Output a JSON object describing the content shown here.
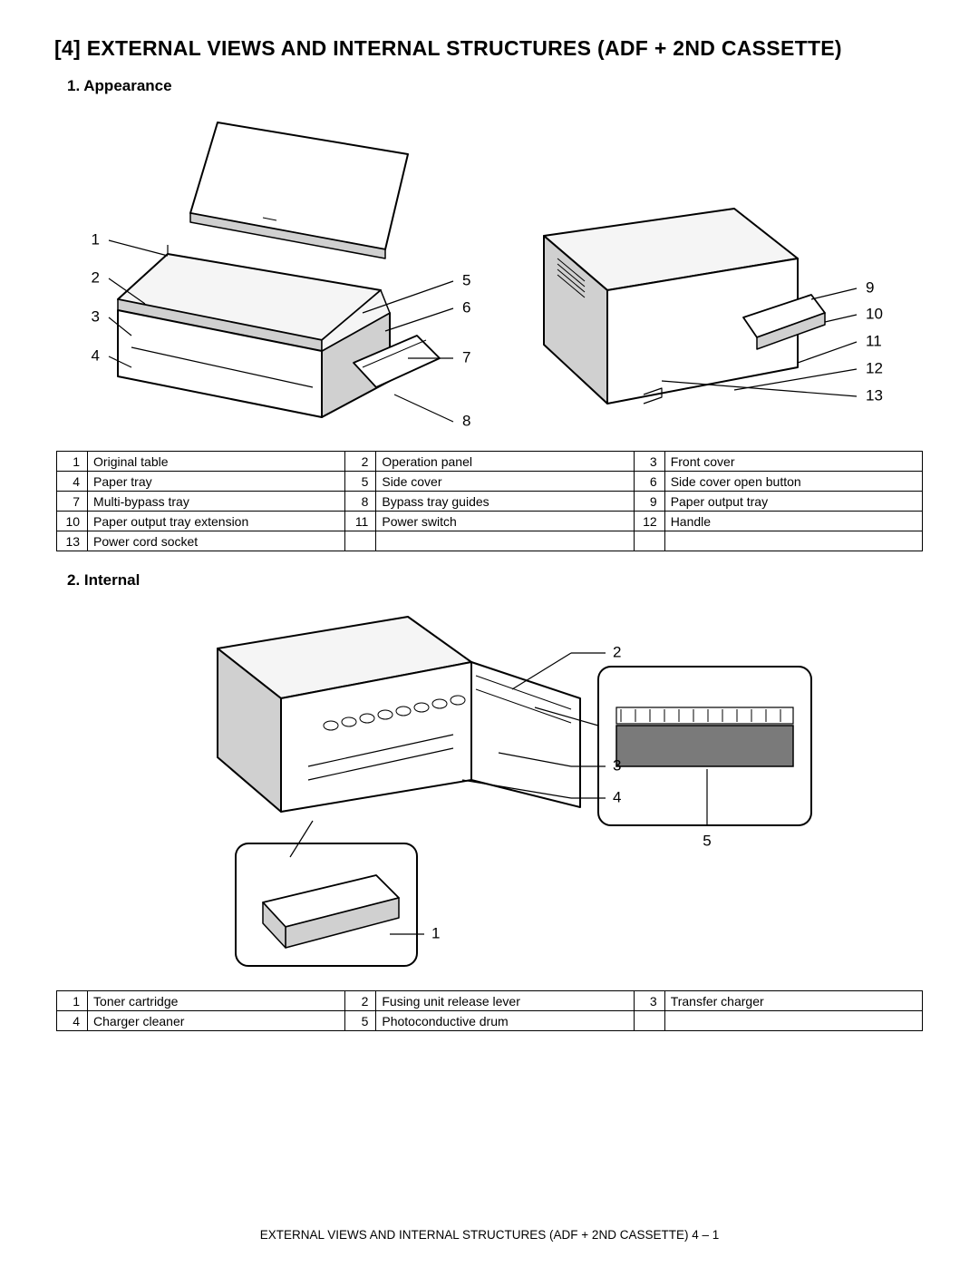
{
  "page": {
    "title": "[4]  EXTERNAL VIEWS AND INTERNAL STRUCTURES (ADF + 2ND CASSETTE)",
    "footer": "EXTERNAL VIEWS AND INTERNAL STRUCTURES (ADF + 2ND CASSETTE)  4 – 1"
  },
  "sections": {
    "appearance": {
      "title": "1.  Appearance",
      "callouts_left": [
        "1",
        "2",
        "3",
        "4",
        "5",
        "6",
        "7",
        "8"
      ],
      "callouts_right": [
        "9",
        "10",
        "11",
        "12",
        "13"
      ],
      "parts": [
        {
          "n": "1",
          "t": "Original table"
        },
        {
          "n": "2",
          "t": "Operation panel"
        },
        {
          "n": "3",
          "t": "Front cover"
        },
        {
          "n": "4",
          "t": "Paper tray"
        },
        {
          "n": "5",
          "t": "Side cover"
        },
        {
          "n": "6",
          "t": "Side cover open button"
        },
        {
          "n": "7",
          "t": "Multi-bypass tray"
        },
        {
          "n": "8",
          "t": "Bypass tray guides"
        },
        {
          "n": "9",
          "t": "Paper output tray"
        },
        {
          "n": "10",
          "t": "Paper output tray extension"
        },
        {
          "n": "11",
          "t": "Power switch"
        },
        {
          "n": "12",
          "t": "Handle"
        },
        {
          "n": "13",
          "t": "Power cord socket"
        },
        {
          "n": "",
          "t": ""
        },
        {
          "n": "",
          "t": ""
        }
      ]
    },
    "internal": {
      "title": "2.  Internal",
      "callouts": [
        "1",
        "2",
        "3",
        "4",
        "5"
      ],
      "parts": [
        {
          "n": "1",
          "t": "Toner cartridge"
        },
        {
          "n": "2",
          "t": "Fusing unit release lever"
        },
        {
          "n": "3",
          "t": "Transfer charger"
        },
        {
          "n": "4",
          "t": "Charger cleaner"
        },
        {
          "n": "5",
          "t": "Photoconductive drum"
        },
        {
          "n": "",
          "t": ""
        }
      ]
    }
  },
  "style": {
    "line_color": "#000000",
    "line_w_thin": 1.2,
    "line_w_med": 2,
    "font_callout": 17,
    "bg": "#ffffff",
    "fill_light": "#f5f5f5",
    "fill_mid": "#d0d0d0",
    "fill_dark": "#7a7a7a"
  }
}
